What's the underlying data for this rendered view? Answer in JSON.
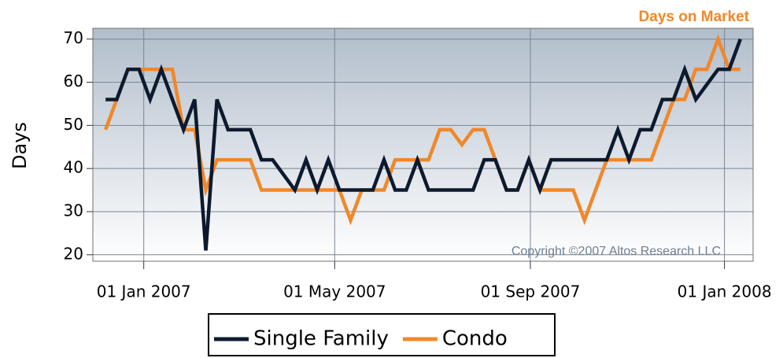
{
  "chart_data": {
    "type": "line",
    "title": "Days on Market",
    "y_label": "Days",
    "annotation": "Copyright ©2007 Altos Research LLC",
    "x": [
      "2006-12-08",
      "2006-12-15",
      "2006-12-22",
      "2006-12-29",
      "2007-01-05",
      "2007-01-12",
      "2007-01-19",
      "2007-01-26",
      "2007-02-02",
      "2007-02-09",
      "2007-02-16",
      "2007-02-23",
      "2007-03-02",
      "2007-03-09",
      "2007-03-16",
      "2007-03-23",
      "2007-03-30",
      "2007-04-06",
      "2007-04-13",
      "2007-04-20",
      "2007-04-27",
      "2007-05-04",
      "2007-05-11",
      "2007-05-18",
      "2007-05-25",
      "2007-06-01",
      "2007-06-08",
      "2007-06-15",
      "2007-06-22",
      "2007-06-29",
      "2007-07-06",
      "2007-07-13",
      "2007-07-20",
      "2007-07-27",
      "2007-08-03",
      "2007-08-10",
      "2007-08-17",
      "2007-08-24",
      "2007-08-31",
      "2007-09-07",
      "2007-09-14",
      "2007-09-21",
      "2007-09-28",
      "2007-10-05",
      "2007-10-12",
      "2007-10-19",
      "2007-10-26",
      "2007-11-02",
      "2007-11-09",
      "2007-11-16",
      "2007-11-23",
      "2007-11-30",
      "2007-12-07",
      "2007-12-14",
      "2007-12-21",
      "2007-12-28",
      "2008-01-04",
      "2008-01-11"
    ],
    "series": [
      {
        "name": "Single Family",
        "color": "#0d1a2e",
        "values": [
          56,
          56,
          63,
          63,
          56,
          63,
          56,
          49,
          56,
          21,
          56,
          49,
          49,
          49,
          42,
          42,
          38.5,
          35,
          42,
          35,
          42,
          35,
          35,
          35,
          35,
          42,
          35,
          35,
          42,
          35,
          35,
          35,
          35,
          35,
          42,
          42,
          35,
          35,
          42,
          35,
          42,
          42,
          42,
          42,
          42,
          42,
          49,
          42,
          49,
          49,
          56,
          56,
          63,
          56,
          59.5,
          63,
          63,
          70
        ]
      },
      {
        "name": "Condo",
        "color": "#f0882a",
        "values": [
          49,
          56,
          63,
          63,
          63,
          63,
          63,
          49,
          49,
          35,
          42,
          42,
          42,
          42,
          35,
          35,
          35,
          35,
          35,
          35,
          35,
          35,
          28,
          35,
          35,
          35,
          42,
          42,
          42,
          42,
          49,
          49,
          45.5,
          49,
          49,
          42,
          35,
          35,
          42,
          35,
          35,
          35,
          35,
          28,
          35,
          42,
          42,
          42,
          42,
          42,
          49,
          56,
          56,
          63,
          63,
          70,
          63,
          63
        ]
      }
    ],
    "xlim": [
      "2006-11-30",
      "2008-01-19"
    ],
    "xticks": [
      {
        "value": "2007-01-01",
        "label": "01 Jan 2007"
      },
      {
        "value": "2007-05-01",
        "label": "01 May 2007"
      },
      {
        "value": "2007-09-01",
        "label": "01 Sep 2007"
      },
      {
        "value": "2008-01-01",
        "label": "01 Jan 2008"
      }
    ],
    "ylim": [
      18.5,
      72.5
    ],
    "yticks": [
      20,
      30,
      40,
      50,
      60,
      70
    ],
    "grid": true,
    "legend": "bottom"
  }
}
